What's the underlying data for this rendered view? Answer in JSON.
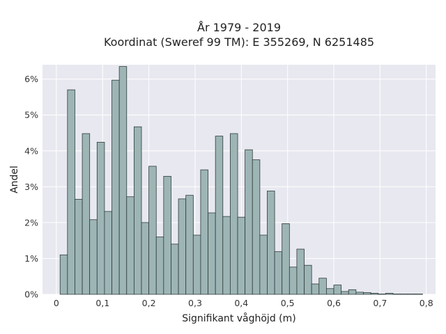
{
  "chart_data": {
    "type": "bar",
    "title": "År 1979 - 2019",
    "subtitle": "Koordinat (Sweref 99 TM): E 355269, N 6251485",
    "xlabel": "Signifikant våghöjd (m)",
    "ylabel": "Andel",
    "xlim": [
      -0.03,
      0.82
    ],
    "ylim": [
      0,
      6.4
    ],
    "xticks": [
      0,
      0.1,
      0.2,
      0.3,
      0.4,
      0.5,
      0.6,
      0.7,
      0.8
    ],
    "xtick_labels": [
      "0",
      "0,1",
      "0,2",
      "0,3",
      "0,4",
      "0,5",
      "0,6",
      "0,7",
      "0,8"
    ],
    "yticks": [
      0,
      1,
      2,
      3,
      4,
      5,
      6
    ],
    "ytick_labels": [
      "0%",
      "1%",
      "2%",
      "3%",
      "4%",
      "5%",
      "6%"
    ],
    "grid": true,
    "bin_width": 0.016,
    "bin_starts": [
      0.008,
      0.024,
      0.04,
      0.056,
      0.072,
      0.088,
      0.104,
      0.12,
      0.136,
      0.152,
      0.168,
      0.184,
      0.2,
      0.216,
      0.232,
      0.248,
      0.264,
      0.28,
      0.296,
      0.312,
      0.328,
      0.344,
      0.36,
      0.376,
      0.392,
      0.408,
      0.424,
      0.44,
      0.456,
      0.472,
      0.488,
      0.504,
      0.52,
      0.536,
      0.552,
      0.568,
      0.584,
      0.6,
      0.616,
      0.632,
      0.648,
      0.664,
      0.68,
      0.696,
      0.712,
      0.728,
      0.744,
      0.76,
      0.776
    ],
    "values": [
      1.1,
      5.7,
      2.65,
      4.48,
      2.08,
      4.24,
      2.31,
      5.97,
      6.35,
      2.72,
      4.67,
      2.0,
      3.57,
      1.6,
      3.29,
      1.4,
      2.66,
      2.76,
      1.65,
      3.47,
      2.27,
      4.41,
      2.17,
      4.48,
      2.15,
      4.03,
      3.75,
      1.65,
      2.88,
      1.19,
      1.97,
      0.76,
      1.26,
      0.81,
      0.29,
      0.45,
      0.16,
      0.26,
      0.08,
      0.13,
      0.06,
      0.05,
      0.03,
      0.01,
      0.03,
      0.01,
      0.01,
      0.01,
      0.01
    ],
    "colors": {
      "bar_fill": "#9eb5b6",
      "bar_stroke": "#2e3b3a",
      "plot_background": "#e8e8f0",
      "grid": "#ffffff"
    }
  }
}
